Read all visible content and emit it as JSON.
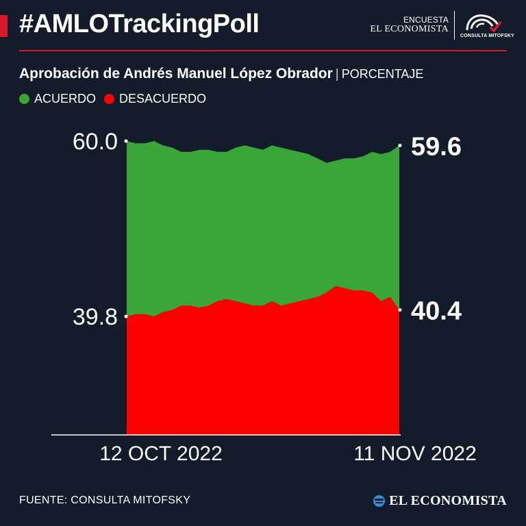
{
  "header": {
    "hashtag": "#AMLOTrackingPoll",
    "brand_line1": "ENCUESTA",
    "brand_line2": "EL ECONOMISTA",
    "partner": "CONSULTA MITOFSKY",
    "accent_color": "#d7192b"
  },
  "subtitle": {
    "main": "Aprobación de Andrés Manuel López Obrador",
    "separator": "|",
    "unit": "PORCENTAJE"
  },
  "legend": [
    {
      "label": "ACUERDO",
      "color": "#3aa63a"
    },
    {
      "label": "DESACUERDO",
      "color": "#ff0000"
    }
  ],
  "chart_data": {
    "type": "area",
    "title": "Aprobación de Andrés Manuel López Obrador",
    "ylabel": "PORCENTAJE",
    "x_start_label": "12 OCT 2022",
    "x_end_label": "11 NOV 2022",
    "y_tick_labels": [
      "60.0",
      "39.8"
    ],
    "series": [
      {
        "name": "ACUERDO",
        "color": "#3aa63a",
        "values": [
          60.0,
          59.8,
          59.8,
          60.0,
          59.6,
          59.4,
          59.0,
          59.0,
          59.2,
          59.2,
          59.0,
          59.0,
          59.4,
          59.6,
          59.4,
          59.2,
          59.6,
          59.4,
          59.2,
          59.0,
          58.8,
          58.4,
          58.0,
          58.2,
          58.4,
          58.4,
          58.6,
          59.0,
          58.8,
          59.0,
          59.6
        ],
        "end_label": "59.6"
      },
      {
        "name": "DESACUERDO",
        "color": "#ff0000",
        "values": [
          39.8,
          40.0,
          40.0,
          39.8,
          40.2,
          40.4,
          40.8,
          40.8,
          40.6,
          40.8,
          41.2,
          41.4,
          41.2,
          41.0,
          40.8,
          40.8,
          41.2,
          40.8,
          41.0,
          41.2,
          41.4,
          41.6,
          42.0,
          42.6,
          42.4,
          42.2,
          42.2,
          42.0,
          41.2,
          41.6,
          40.4
        ],
        "end_label": "40.4"
      }
    ]
  },
  "footer": {
    "source": "FUENTE: CONSULTA MITOFSKY",
    "logo": "EL ECONOMISTA"
  }
}
